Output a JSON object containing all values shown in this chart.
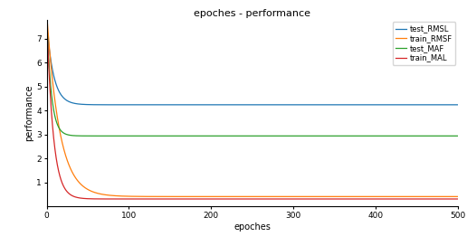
{
  "title": "epoches - performance",
  "xlabel": "epoches",
  "ylabel": "performance",
  "xlim": [
    0,
    500
  ],
  "ylim": [
    0,
    7.8
  ],
  "yticks": [
    1,
    2,
    3,
    4,
    5,
    6,
    7
  ],
  "xticks": [
    0,
    100,
    200,
    300,
    400,
    500
  ],
  "legend": [
    "test_RMSL",
    "train_RMSF",
    "test_MAF",
    "train_MAL"
  ],
  "colors": {
    "test_RMSL": "#1f77b4",
    "train_RMSF": "#ff7f0e",
    "test_MAF": "#2ca02c",
    "train_MAL": "#d62728"
  },
  "asymptotes": {
    "test_RMSL": 4.25,
    "train_RMSF": 0.42,
    "test_MAF": 2.95,
    "train_MAL": 0.32
  },
  "start_values": {
    "test_RMSL": 7.25,
    "train_RMSF": 7.6,
    "test_MAF": 7.1,
    "train_MAL": 7.05
  },
  "decay_rates": {
    "test_RMSL": 0.12,
    "train_RMSF": 0.065,
    "test_MAF": 0.18,
    "train_MAL": 0.13
  },
  "title_fontsize": 8,
  "label_fontsize": 7,
  "tick_fontsize": 6.5,
  "legend_fontsize": 6,
  "linewidth": 0.9
}
